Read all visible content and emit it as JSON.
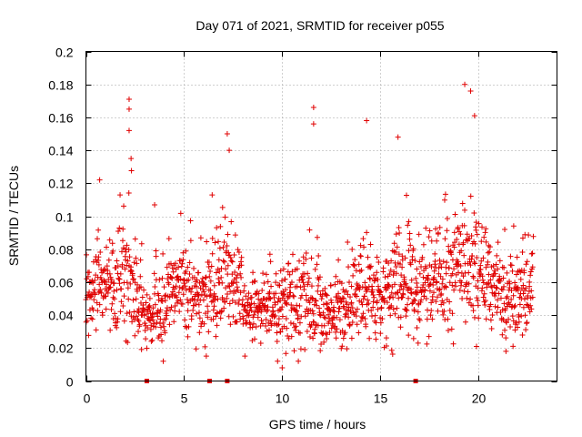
{
  "chart_data": {
    "type": "scatter",
    "title": "Day 071 of 2021, SRMTID for receiver p055",
    "xlabel": "GPS time / hours",
    "ylabel": "SRMTID / TECUs",
    "xlim": [
      0,
      24
    ],
    "ylim": [
      0,
      0.2
    ],
    "x_ticks": [
      0,
      5,
      10,
      15,
      20
    ],
    "y_ticks": [
      0,
      0.02,
      0.04,
      0.06,
      0.08,
      0.1,
      0.12,
      0.14,
      0.16,
      0.18,
      0.2
    ],
    "x_tick_labels": [
      "0",
      "5",
      "10",
      "15",
      "20"
    ],
    "y_tick_labels": [
      "0",
      "0.02",
      "0.04",
      "0.06",
      "0.08",
      "0.1",
      "0.12",
      "0.14",
      "0.16",
      "0.18",
      "0.2"
    ],
    "grid": true,
    "marker": "plus",
    "series": [
      {
        "name": "SRMTID",
        "color": "#e00000",
        "notable_points": [
          {
            "x": 0.7,
            "y": 0.122
          },
          {
            "x": 2.2,
            "y": 0.171
          },
          {
            "x": 2.2,
            "y": 0.165
          },
          {
            "x": 2.2,
            "y": 0.152
          },
          {
            "x": 2.3,
            "y": 0.135
          },
          {
            "x": 7.2,
            "y": 0.15
          },
          {
            "x": 7.3,
            "y": 0.14
          },
          {
            "x": 11.6,
            "y": 0.166
          },
          {
            "x": 11.6,
            "y": 0.156
          },
          {
            "x": 14.3,
            "y": 0.158
          },
          {
            "x": 15.9,
            "y": 0.148
          },
          {
            "x": 19.3,
            "y": 0.18
          },
          {
            "x": 19.6,
            "y": 0.176
          },
          {
            "x": 19.8,
            "y": 0.161
          },
          {
            "x": 10.0,
            "y": 0.008
          },
          {
            "x": 19.9,
            "y": 0.021
          },
          {
            "x": 21.4,
            "y": 0.018
          }
        ],
        "trend_profile": [
          {
            "x": 0.0,
            "center": 0.055,
            "spread": 0.014
          },
          {
            "x": 1.0,
            "center": 0.06,
            "spread": 0.016
          },
          {
            "x": 2.0,
            "center": 0.065,
            "spread": 0.02
          },
          {
            "x": 2.5,
            "center": 0.06,
            "spread": 0.02
          },
          {
            "x": 3.0,
            "center": 0.038,
            "spread": 0.01
          },
          {
            "x": 4.0,
            "center": 0.045,
            "spread": 0.014
          },
          {
            "x": 4.5,
            "center": 0.065,
            "spread": 0.012
          },
          {
            "x": 5.5,
            "center": 0.05,
            "spread": 0.014
          },
          {
            "x": 6.5,
            "center": 0.055,
            "spread": 0.016
          },
          {
            "x": 7.3,
            "center": 0.07,
            "spread": 0.02
          },
          {
            "x": 8.0,
            "center": 0.042,
            "spread": 0.01
          },
          {
            "x": 10.0,
            "center": 0.045,
            "spread": 0.012
          },
          {
            "x": 11.0,
            "center": 0.05,
            "spread": 0.018
          },
          {
            "x": 12.0,
            "center": 0.04,
            "spread": 0.012
          },
          {
            "x": 13.0,
            "center": 0.042,
            "spread": 0.012
          },
          {
            "x": 14.0,
            "center": 0.055,
            "spread": 0.016
          },
          {
            "x": 15.0,
            "center": 0.05,
            "spread": 0.014
          },
          {
            "x": 16.0,
            "center": 0.065,
            "spread": 0.02
          },
          {
            "x": 17.0,
            "center": 0.055,
            "spread": 0.014
          },
          {
            "x": 18.0,
            "center": 0.065,
            "spread": 0.018
          },
          {
            "x": 19.5,
            "center": 0.075,
            "spread": 0.022
          },
          {
            "x": 20.5,
            "center": 0.065,
            "spread": 0.018
          },
          {
            "x": 21.5,
            "center": 0.05,
            "spread": 0.014
          },
          {
            "x": 22.7,
            "center": 0.055,
            "spread": 0.014
          }
        ],
        "x_range": [
          0,
          22.8
        ],
        "point_count": 1600
      }
    ],
    "zero_markers": [
      {
        "x": 3.1,
        "y": 0
      },
      {
        "x": 6.3,
        "y": 0
      },
      {
        "x": 7.2,
        "y": 0
      },
      {
        "x": 16.8,
        "y": 0
      }
    ]
  }
}
